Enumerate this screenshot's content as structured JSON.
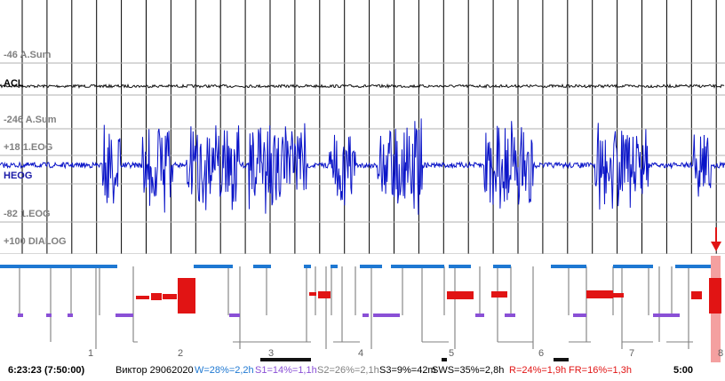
{
  "channels": {
    "acl_scale": "-46 A.Sum",
    "acl_name": "ACL",
    "heog_scale": "-246 A.Sum",
    "eog_top": "+18 1.EOG",
    "heog_name": "HEOG",
    "eog_bottom": "-82 1.EOG",
    "dialog": "+100 DIALOG"
  },
  "hour_ticks": [
    "1",
    "2",
    "3",
    "4",
    "5",
    "6",
    "7",
    "8"
  ],
  "time_marker": "5:00",
  "status": {
    "timestamp": "6:23:23 (7:50:00)",
    "subject": "Виктор 29062020",
    "w": "W=28%=2,2h",
    "s1": "S1=14%=1,1h",
    "s2": "S2=26%=2,1h",
    "s3": "S3=9%=42m",
    "sws": "SWS=35%=2,8h",
    "r": "R=24%=1,9h",
    "fr": "FR=16%=1,3h"
  },
  "colors": {
    "heog": "#0a14c8",
    "wake": "#1e78d2",
    "s1": "#8a50d6",
    "rem": "#e11414",
    "marker": "#f4a0a0",
    "grid": "#000000"
  },
  "icons": {
    "position_marker": "down-arrow-icon"
  }
}
